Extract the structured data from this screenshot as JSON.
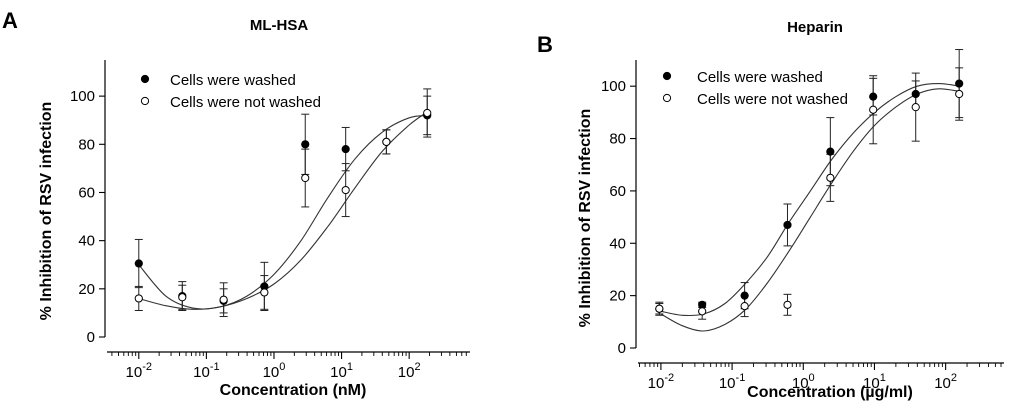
{
  "chart_data": [
    {
      "type": "scatter",
      "panel": "A",
      "title": "ML-HSA",
      "xlabel": "Concentration (nM)",
      "ylabel": "% Inhibition of RSV infection",
      "xscale": "log",
      "xlim_log10": [
        -2.5,
        2.9
      ],
      "xticks_log10": [
        -2,
        -1,
        0,
        1,
        2
      ],
      "ylim": [
        0,
        115
      ],
      "yticks": [
        0,
        20,
        40,
        60,
        80,
        100
      ],
      "legend": {
        "position": "top-left",
        "entries": [
          "Cells were washed",
          "Cells were not washed"
        ]
      },
      "series": [
        {
          "name": "Cells were washed",
          "marker": "filled-circle",
          "x": [
            0.01,
            0.044,
            0.18,
            0.72,
            2.9,
            11.5,
            46,
            185
          ],
          "y": [
            30.5,
            17,
            15,
            21,
            80,
            78,
            81,
            92
          ],
          "err": [
            10,
            6,
            5,
            10,
            12.5,
            9,
            5,
            8
          ],
          "fit": [
            [
              -2,
              30
            ],
            [
              -1.6,
              17
            ],
            [
              -1.2,
              12
            ],
            [
              -0.8,
              12.5
            ],
            [
              -0.4,
              17
            ],
            [
              0,
              26
            ],
            [
              0.4,
              40
            ],
            [
              0.8,
              58
            ],
            [
              1.2,
              74
            ],
            [
              1.6,
              85
            ],
            [
              2,
              91
            ],
            [
              2.3,
              92
            ]
          ]
        },
        {
          "name": "Cells were not washed",
          "marker": "open-circle",
          "x": [
            0.01,
            0.044,
            0.18,
            0.72,
            2.9,
            11.5,
            46,
            185
          ],
          "y": [
            16,
            16.5,
            15.5,
            18.5,
            66,
            61,
            81,
            93
          ],
          "err": [
            5,
            5,
            7,
            7,
            12,
            11,
            5,
            10
          ],
          "fit": [
            [
              -2,
              16
            ],
            [
              -1.6,
              13
            ],
            [
              -1.2,
              11.5
            ],
            [
              -0.8,
              12.5
            ],
            [
              -0.4,
              16
            ],
            [
              0,
              22
            ],
            [
              0.4,
              32
            ],
            [
              0.8,
              46
            ],
            [
              1.2,
              62
            ],
            [
              1.6,
              77
            ],
            [
              2,
              88
            ],
            [
              2.3,
              94
            ]
          ]
        }
      ]
    },
    {
      "type": "scatter",
      "panel": "B",
      "title": "Heparin",
      "xlabel": "Concentration (µg/ml)",
      "ylabel": "% Inhibition of RSV infection",
      "xscale": "log",
      "xlim_log10": [
        -2.35,
        2.82
      ],
      "xticks_log10": [
        -2,
        -1,
        0,
        1,
        2
      ],
      "ylim": [
        0,
        110
      ],
      "yticks": [
        0,
        20,
        40,
        60,
        80,
        100
      ],
      "legend": {
        "position": "top-left",
        "entries": [
          "Cells were washed",
          "Cells were not washed"
        ]
      },
      "series": [
        {
          "name": "Cells were washed",
          "marker": "filled-circle",
          "x": [
            0.0095,
            0.038,
            0.15,
            0.6,
            2.4,
            9.6,
            38,
            155
          ],
          "y": [
            15,
            16.5,
            20,
            47,
            75,
            96,
            97,
            101
          ],
          "err": [
            2,
            1,
            5,
            8,
            13,
            7,
            5,
            13
          ],
          "fit": [
            [
              -2,
              14
            ],
            [
              -1.7,
              12.5
            ],
            [
              -1.4,
              13
            ],
            [
              -1.1,
              17
            ],
            [
              -0.8,
              25
            ],
            [
              -0.5,
              35
            ],
            [
              -0.2,
              48
            ],
            [
              0.1,
              60
            ],
            [
              0.4,
              72
            ],
            [
              0.7,
              82
            ],
            [
              1,
              90
            ],
            [
              1.3,
              96
            ],
            [
              1.6,
              100
            ],
            [
              1.9,
              101
            ],
            [
              2.2,
              100
            ]
          ]
        },
        {
          "name": "Cells were not washed",
          "marker": "open-circle",
          "x": [
            0.0095,
            0.038,
            0.15,
            0.6,
            2.4,
            9.6,
            38,
            155
          ],
          "y": [
            15,
            14,
            16,
            16.5,
            65,
            91,
            92,
            97
          ],
          "err": [
            2.5,
            3,
            4,
            4,
            9,
            13,
            13,
            10
          ],
          "fit": [
            [
              -2,
              13
            ],
            [
              -1.7,
              8.5
            ],
            [
              -1.4,
              6.5
            ],
            [
              -1.1,
              9
            ],
            [
              -0.8,
              15
            ],
            [
              -0.5,
              25
            ],
            [
              -0.2,
              37
            ],
            [
              0.1,
              50
            ],
            [
              0.4,
              63
            ],
            [
              0.7,
              75
            ],
            [
              1,
              85
            ],
            [
              1.3,
              92
            ],
            [
              1.6,
              97
            ],
            [
              1.9,
              99
            ],
            [
              2.2,
              98
            ]
          ]
        }
      ]
    }
  ]
}
